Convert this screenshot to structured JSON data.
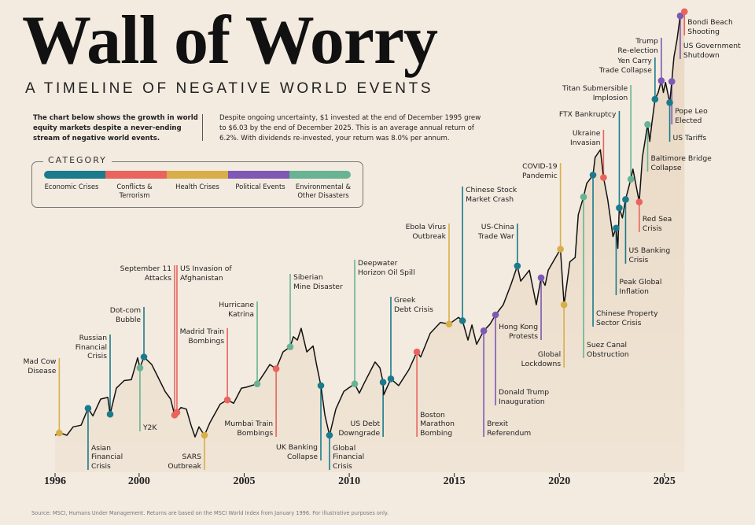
{
  "header": {
    "title": "Wall of Worry",
    "subtitle": "A TIMELINE OF NEGATIVE WORLD EVENTS",
    "intro": "The chart below shows the growth in world equity markets despite a never-ending stream of negative world events.",
    "description": "Despite ongoing uncertainty, $1 invested at the end of December 1995 grew to $6.03 by the end of December 2025. This is an average annual return of 6.2%. With dividends re-invested, your return was 8.0% per annum."
  },
  "legend": {
    "title": "CATEGORY",
    "items": [
      {
        "key": "econ",
        "label": "Economic Crises",
        "color": "#1b7a8c"
      },
      {
        "key": "conflict",
        "label": "Conflicts &\nTerrorism",
        "color": "#e9645e"
      },
      {
        "key": "health",
        "label": "Health Crises",
        "color": "#d8ae48"
      },
      {
        "key": "political",
        "label": "Political Events",
        "color": "#7e58b4"
      },
      {
        "key": "env",
        "label": "Environmental &\nOther Disasters",
        "color": "#68b393"
      }
    ]
  },
  "source": "Source: MSCI, Humans Under Management. Returns are based on the MSCI World Index from January 1996. For illustrative purposes only.",
  "chart_data": {
    "type": "line",
    "title": "Wall of Worry",
    "xlabel": "",
    "ylabel": "",
    "x_ticks": [
      "1996",
      "2000",
      "2005",
      "2010",
      "2015",
      "2020",
      "2025"
    ],
    "xlim": [
      1996,
      2026
    ],
    "ylim": [
      0.9,
      6.1
    ],
    "grid": false,
    "line_color": "#111111",
    "area_color": "#e9d8c3",
    "series": [
      {
        "points": [
          [
            1996.0,
            1.0
          ],
          [
            1996.22,
            1.03
          ],
          [
            1996.56,
            1.0
          ],
          [
            1996.86,
            1.1
          ],
          [
            1997.24,
            1.12
          ],
          [
            1997.57,
            1.32
          ],
          [
            1997.8,
            1.23
          ],
          [
            1998.17,
            1.43
          ],
          [
            1998.51,
            1.45
          ],
          [
            1998.62,
            1.25
          ],
          [
            1998.92,
            1.56
          ],
          [
            1999.29,
            1.65
          ],
          [
            1999.63,
            1.66
          ],
          [
            1999.93,
            1.92
          ],
          [
            2000.04,
            1.8
          ],
          [
            2000.23,
            1.93
          ],
          [
            2000.6,
            1.84
          ],
          [
            2000.98,
            1.65
          ],
          [
            2001.24,
            1.52
          ],
          [
            2001.5,
            1.43
          ],
          [
            2001.69,
            1.24
          ],
          [
            2001.99,
            1.33
          ],
          [
            2002.25,
            1.31
          ],
          [
            2002.47,
            1.12
          ],
          [
            2002.66,
            0.98
          ],
          [
            2002.85,
            1.1
          ],
          [
            2003.11,
            1.0
          ],
          [
            2003.37,
            1.15
          ],
          [
            2003.86,
            1.37
          ],
          [
            2004.2,
            1.42
          ],
          [
            2004.5,
            1.38
          ],
          [
            2004.87,
            1.56
          ],
          [
            2005.09,
            1.57
          ],
          [
            2005.62,
            1.61
          ],
          [
            2005.99,
            1.75
          ],
          [
            2006.22,
            1.84
          ],
          [
            2006.52,
            1.79
          ],
          [
            2006.85,
            1.99
          ],
          [
            2007.19,
            2.05
          ],
          [
            2007.34,
            2.17
          ],
          [
            2007.53,
            2.13
          ],
          [
            2007.71,
            2.27
          ],
          [
            2007.98,
            1.99
          ],
          [
            2008.28,
            2.06
          ],
          [
            2008.46,
            1.82
          ],
          [
            2008.65,
            1.59
          ],
          [
            2008.84,
            1.24
          ],
          [
            2009.06,
            1.0
          ],
          [
            2009.36,
            1.31
          ],
          [
            2009.74,
            1.52
          ],
          [
            2009.96,
            1.56
          ],
          [
            2010.26,
            1.61
          ],
          [
            2010.48,
            1.5
          ],
          [
            2010.71,
            1.62
          ],
          [
            2011.23,
            1.87
          ],
          [
            2011.46,
            1.8
          ],
          [
            2011.61,
            1.63
          ],
          [
            2011.64,
            1.48
          ],
          [
            2011.98,
            1.67
          ],
          [
            2012.35,
            1.59
          ],
          [
            2012.84,
            1.78
          ],
          [
            2013.22,
            1.99
          ],
          [
            2013.4,
            1.93
          ],
          [
            2013.85,
            2.21
          ],
          [
            2014.34,
            2.34
          ],
          [
            2014.75,
            2.32
          ],
          [
            2015.2,
            2.4
          ],
          [
            2015.39,
            2.36
          ],
          [
            2015.65,
            2.13
          ],
          [
            2015.84,
            2.31
          ],
          [
            2016.06,
            2.08
          ],
          [
            2016.4,
            2.24
          ],
          [
            2016.7,
            2.32
          ],
          [
            2016.96,
            2.43
          ],
          [
            2017.33,
            2.55
          ],
          [
            2017.71,
            2.8
          ],
          [
            2018.0,
            3.01
          ],
          [
            2018.16,
            2.83
          ],
          [
            2018.57,
            2.96
          ],
          [
            2018.9,
            2.55
          ],
          [
            2019.13,
            2.87
          ],
          [
            2019.32,
            2.78
          ],
          [
            2019.47,
            2.96
          ],
          [
            2020.05,
            3.21
          ],
          [
            2020.22,
            2.55
          ],
          [
            2020.5,
            3.06
          ],
          [
            2020.75,
            3.11
          ],
          [
            2020.9,
            3.62
          ],
          [
            2021.15,
            3.83
          ],
          [
            2021.3,
            3.99
          ],
          [
            2021.6,
            4.09
          ],
          [
            2021.7,
            4.3
          ],
          [
            2021.95,
            4.39
          ],
          [
            2022.1,
            4.06
          ],
          [
            2022.3,
            3.8
          ],
          [
            2022.55,
            3.36
          ],
          [
            2022.7,
            3.46
          ],
          [
            2022.78,
            3.22
          ],
          [
            2022.85,
            3.7
          ],
          [
            2023.0,
            3.58
          ],
          [
            2023.15,
            3.8
          ],
          [
            2023.4,
            4.04
          ],
          [
            2023.5,
            4.16
          ],
          [
            2023.8,
            3.77
          ],
          [
            2023.95,
            4.3
          ],
          [
            2024.2,
            4.69
          ],
          [
            2024.3,
            4.49
          ],
          [
            2024.4,
            4.7
          ],
          [
            2024.55,
            4.99
          ],
          [
            2024.7,
            5.07
          ],
          [
            2024.85,
            5.21
          ],
          [
            2024.95,
            5.07
          ],
          [
            2025.05,
            5.19
          ],
          [
            2025.25,
            4.95
          ],
          [
            2025.35,
            5.2
          ],
          [
            2025.45,
            5.49
          ],
          [
            2025.6,
            5.7
          ],
          [
            2025.75,
            5.98
          ],
          [
            2025.95,
            6.03
          ]
        ]
      }
    ],
    "events": [
      {
        "year": 1996.2,
        "category": "health",
        "label": "Mad Cow\nDisease",
        "side": "above"
      },
      {
        "year": 1997.57,
        "category": "econ",
        "label": "Asian\nFinancial\nCrisis",
        "side": "below"
      },
      {
        "year": 1998.62,
        "category": "econ",
        "label": "Russian\nFinancial\nCrisis",
        "side": "above"
      },
      {
        "year": 2000.23,
        "category": "econ",
        "label": "Dot-com\nBubble",
        "side": "above"
      },
      {
        "year": 2000.04,
        "category": "env",
        "label": "Y2K",
        "side": "below"
      },
      {
        "year": 2001.69,
        "category": "conflict",
        "label": "September 11\nAttacks",
        "side": "above"
      },
      {
        "year": 2001.8,
        "category": "conflict",
        "label": "US Invasion of\nAfghanistan",
        "side": "above"
      },
      {
        "year": 2003.11,
        "category": "health",
        "label": "SARS\nOutbreak",
        "side": "below"
      },
      {
        "year": 2004.2,
        "category": "conflict",
        "label": "Madrid Train\nBombings",
        "side": "above"
      },
      {
        "year": 2005.62,
        "category": "env",
        "label": "Hurricane\nKatrina",
        "side": "above"
      },
      {
        "year": 2006.52,
        "category": "conflict",
        "label": "Mumbai Train\nBombings",
        "side": "below"
      },
      {
        "year": 2007.19,
        "category": "env",
        "label": "Siberian\nMine Disaster",
        "side": "above"
      },
      {
        "year": 2008.65,
        "category": "econ",
        "label": "UK Banking\nCollapse",
        "side": "below"
      },
      {
        "year": 2009.06,
        "category": "econ",
        "label": "Global\nFinancial\nCrisis",
        "side": "below"
      },
      {
        "year": 2010.26,
        "category": "env",
        "label": "Deepwater\nHorizon Oil Spill",
        "side": "above"
      },
      {
        "year": 2011.61,
        "category": "econ",
        "label": "US Debt\nDowngrade",
        "side": "below"
      },
      {
        "year": 2011.98,
        "category": "econ",
        "label": "Greek\nDebt Crisis",
        "side": "above"
      },
      {
        "year": 2013.22,
        "category": "conflict",
        "label": "Boston\nMarathon\nBombing",
        "side": "below"
      },
      {
        "year": 2014.75,
        "category": "health",
        "label": "Ebola Virus\nOutbreak",
        "side": "above"
      },
      {
        "year": 2015.39,
        "category": "econ",
        "label": "Chinese Stock\nMarket Crash",
        "side": "above"
      },
      {
        "year": 2016.4,
        "category": "political",
        "label": "Brexit\nReferendum",
        "side": "below"
      },
      {
        "year": 2016.96,
        "category": "political",
        "label": "Donald Trump\nInauguration",
        "side": "below"
      },
      {
        "year": 2018.0,
        "category": "econ",
        "label": "US-China\nTrade War",
        "side": "above"
      },
      {
        "year": 2019.13,
        "category": "political",
        "label": "Hong Kong\nProtests",
        "side": "below"
      },
      {
        "year": 2020.05,
        "category": "health",
        "label": "COVID-19\nPandemic",
        "side": "above"
      },
      {
        "year": 2020.22,
        "category": "health",
        "label": "Global\nLockdowns",
        "side": "below"
      },
      {
        "year": 2021.15,
        "category": "env",
        "label": "Suez Canal\nObstruction",
        "side": "below"
      },
      {
        "year": 2021.6,
        "category": "econ",
        "label": "Chinese Property\nSector Crisis",
        "side": "below"
      },
      {
        "year": 2022.1,
        "category": "conflict",
        "label": "Ukraine\nInvasian",
        "side": "above"
      },
      {
        "year": 2022.7,
        "category": "econ",
        "label": "Peak Global\nInflation",
        "side": "below"
      },
      {
        "year": 2022.85,
        "category": "econ",
        "label": "FTX Bankruptcy",
        "side": "above"
      },
      {
        "year": 2023.15,
        "category": "econ",
        "label": "US Banking\nCrisis",
        "side": "below"
      },
      {
        "year": 2023.4,
        "category": "env",
        "label": "Titan Submersible\nImplosion",
        "side": "above"
      },
      {
        "year": 2023.8,
        "category": "conflict",
        "label": "Red Sea\nCrisis",
        "side": "below"
      },
      {
        "year": 2024.2,
        "category": "env",
        "label": "Baltimore Bridge\nCollapse",
        "side": "below"
      },
      {
        "year": 2024.55,
        "category": "econ",
        "label": "Yen Carry\nTrade Collapse",
        "side": "above"
      },
      {
        "year": 2024.85,
        "category": "political",
        "label": "Trump\nRe-election",
        "side": "above"
      },
      {
        "year": 2025.25,
        "category": "econ",
        "label": "US Tariffs",
        "side": "below"
      },
      {
        "year": 2025.35,
        "category": "political",
        "label": "Pope Leo\nElected",
        "side": "below"
      },
      {
        "year": 2025.75,
        "category": "political",
        "label": "US Government\nShutdown",
        "side": "below"
      },
      {
        "year": 2025.95,
        "category": "conflict",
        "label": "Bondi Beach\nShooting",
        "side": "below"
      }
    ]
  }
}
